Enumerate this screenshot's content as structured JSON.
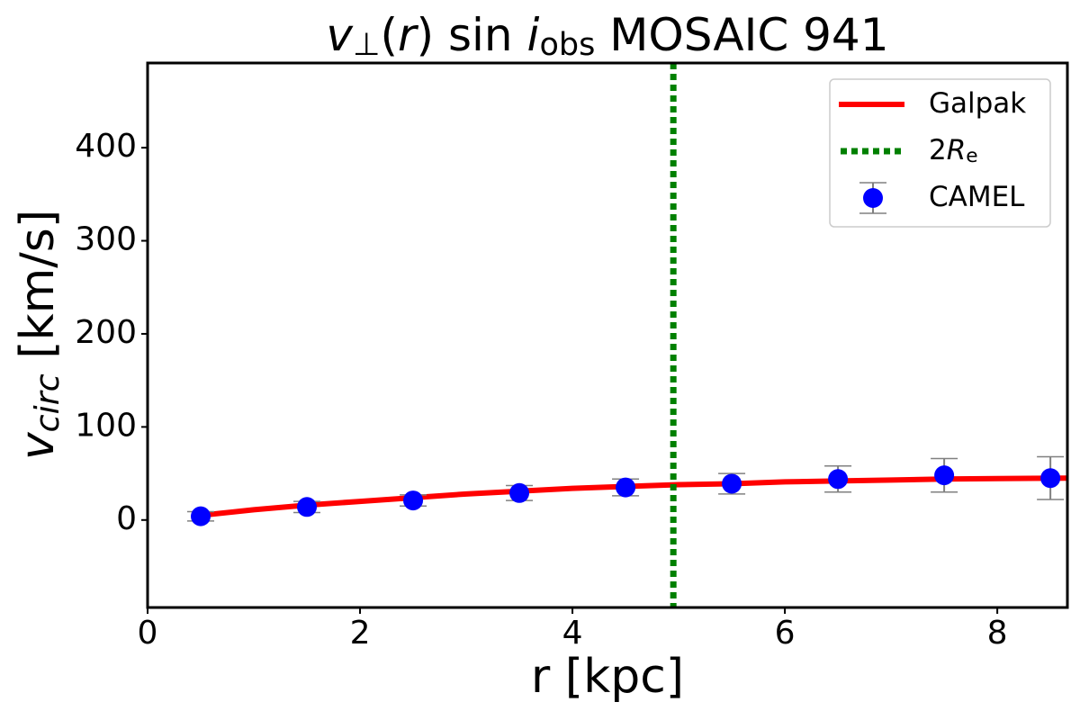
{
  "chart_data": {
    "type": "line",
    "title": [
      {
        "text": "v",
        "style": "italic"
      },
      {
        "text": "⊥",
        "style": "sub"
      },
      {
        "text": "(",
        "style": "normal"
      },
      {
        "text": "r",
        "style": "italic"
      },
      {
        "text": ") sin ",
        "style": "normal"
      },
      {
        "text": "i",
        "style": "italic"
      },
      {
        "text": "obs",
        "style": "sub"
      },
      {
        "text": " MOSAIC 941",
        "style": "normal"
      }
    ],
    "x_label": [
      {
        "text": "r [kpc]",
        "style": "normal"
      }
    ],
    "y_label": [
      {
        "text": "v",
        "style": "italic"
      },
      {
        "text": "circ",
        "style": "subitalic"
      },
      {
        "text": " [km/s]",
        "style": "normal"
      }
    ],
    "xlim": [
      0,
      8.66
    ],
    "ylim": [
      -94,
      491
    ],
    "xticks": [
      0,
      2,
      4,
      6,
      8
    ],
    "yticks": [
      0,
      100,
      200,
      300,
      400
    ],
    "legend": "upper right",
    "series": [
      {
        "name": [
          {
            "text": "Galpak",
            "style": "normal"
          }
        ],
        "color": "#ff0000",
        "x": [
          0.5,
          1,
          1.5,
          2,
          2.5,
          3,
          3.5,
          4,
          4.5,
          5,
          5.5,
          6,
          6.5,
          7,
          7.5,
          8,
          8.66
        ],
        "values": [
          5,
          11,
          16,
          20,
          24,
          28,
          31,
          34,
          36,
          38,
          39,
          41,
          42,
          43,
          44,
          44.5,
          45
        ]
      },
      {
        "type": "vline",
        "name": [
          {
            "text": "2",
            "style": "normal"
          },
          {
            "text": "R",
            "style": "italic"
          },
          {
            "text": "e",
            "style": "sub"
          }
        ],
        "color": "#008000",
        "x": 4.95
      },
      {
        "type": "errorbar",
        "name": [
          {
            "text": "CAMEL",
            "style": "normal"
          }
        ],
        "color": "#0000ff",
        "error_color": "#808080",
        "x": [
          0.5,
          1.5,
          2.5,
          3.5,
          4.5,
          5.5,
          6.5,
          7.5,
          8.5
        ],
        "values": [
          4,
          14,
          21,
          29,
          35,
          39,
          44,
          48,
          45
        ],
        "errors": [
          5,
          6,
          6,
          8,
          9,
          11,
          14,
          18,
          23
        ]
      }
    ]
  }
}
